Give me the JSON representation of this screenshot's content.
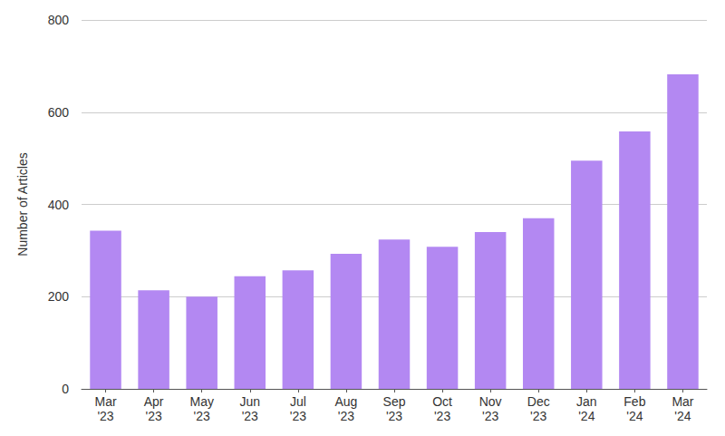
{
  "chart_data": {
    "type": "bar",
    "y_label": "Number of Articles",
    "categories": [
      "Mar\n'23",
      "Apr\n'23",
      "May\n'23",
      "Jun\n'23",
      "Jul\n'23",
      "Aug\n'23",
      "Sep\n'23",
      "Oct\n'23",
      "Nov\n'23",
      "Dec\n'23",
      "Jan\n'24",
      "Feb\n'24",
      "Mar\n'24"
    ],
    "values": [
      343,
      214,
      200,
      244,
      257,
      293,
      324,
      308,
      340,
      370,
      495,
      558,
      682
    ],
    "color": "#b388f2",
    "ylim": [
      0,
      800
    ],
    "yticks": [
      0,
      200,
      400,
      600,
      800
    ],
    "grid": true
  }
}
